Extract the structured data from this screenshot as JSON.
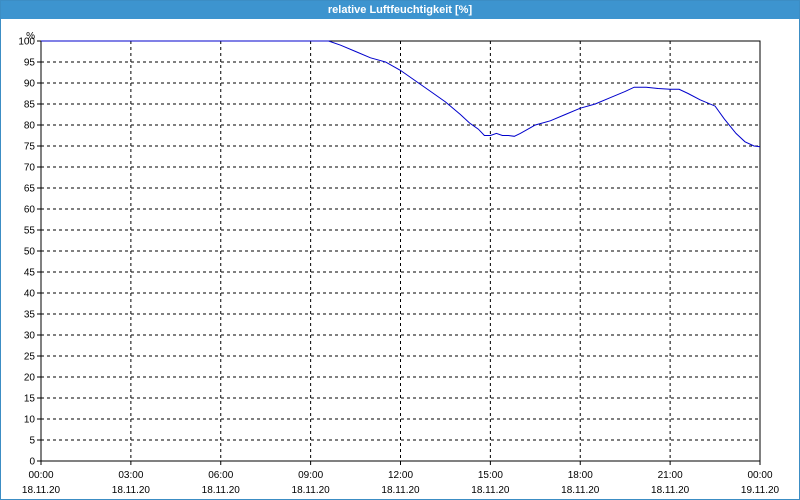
{
  "window": {
    "title": "relative Luftfeuchtigkeit [%]"
  },
  "colors": {
    "titlebar": "#3d94cf",
    "series": "#0000cc",
    "grid": "#000000"
  },
  "chart_data": {
    "type": "line",
    "title": "relative Luftfeuchtigkeit [%]",
    "ylabel": "%",
    "xlabel": "",
    "ylim": [
      0,
      100
    ],
    "y_ticks": [
      0,
      5,
      10,
      15,
      20,
      25,
      30,
      35,
      40,
      45,
      50,
      55,
      60,
      65,
      70,
      75,
      80,
      85,
      90,
      95,
      100
    ],
    "xlim_hours": [
      0,
      24
    ],
    "x_ticks": [
      {
        "hour": 0,
        "time": "00:00",
        "date": "18.11.20"
      },
      {
        "hour": 3,
        "time": "03:00",
        "date": "18.11.20"
      },
      {
        "hour": 6,
        "time": "06:00",
        "date": "18.11.20"
      },
      {
        "hour": 9,
        "time": "09:00",
        "date": "18.11.20"
      },
      {
        "hour": 12,
        "time": "12:00",
        "date": "18.11.20"
      },
      {
        "hour": 15,
        "time": "15:00",
        "date": "18.11.20"
      },
      {
        "hour": 18,
        "time": "18:00",
        "date": "18.11.20"
      },
      {
        "hour": 21,
        "time": "21:00",
        "date": "18.11.20"
      },
      {
        "hour": 24,
        "time": "00:00",
        "date": "19.11.20"
      }
    ],
    "grid": true,
    "legend": "none",
    "series": [
      {
        "points": [
          [
            0.0,
            100
          ],
          [
            3.0,
            100
          ],
          [
            6.0,
            100
          ],
          [
            9.0,
            100
          ],
          [
            9.6,
            100
          ],
          [
            10.0,
            99
          ],
          [
            10.5,
            97.5
          ],
          [
            11.0,
            96
          ],
          [
            11.5,
            95
          ],
          [
            12.0,
            93
          ],
          [
            12.5,
            90.5
          ],
          [
            13.0,
            88
          ],
          [
            13.5,
            85.5
          ],
          [
            14.0,
            82.5
          ],
          [
            14.3,
            80.5
          ],
          [
            14.6,
            79
          ],
          [
            14.8,
            77.5
          ],
          [
            15.0,
            77.5
          ],
          [
            15.2,
            78
          ],
          [
            15.4,
            77.5
          ],
          [
            15.6,
            77.5
          ],
          [
            15.8,
            77.3
          ],
          [
            16.0,
            78
          ],
          [
            16.5,
            80
          ],
          [
            17.0,
            81
          ],
          [
            17.5,
            82.5
          ],
          [
            18.0,
            84
          ],
          [
            18.5,
            85
          ],
          [
            19.0,
            86.5
          ],
          [
            19.5,
            88
          ],
          [
            19.8,
            89
          ],
          [
            20.2,
            89
          ],
          [
            20.6,
            88.7
          ],
          [
            21.0,
            88.5
          ],
          [
            21.3,
            88.5
          ],
          [
            21.6,
            87.5
          ],
          [
            22.0,
            86
          ],
          [
            22.5,
            84.5
          ],
          [
            22.8,
            81.5
          ],
          [
            23.2,
            78
          ],
          [
            23.5,
            76
          ],
          [
            23.8,
            75
          ],
          [
            24.0,
            74.8
          ]
        ]
      }
    ]
  }
}
